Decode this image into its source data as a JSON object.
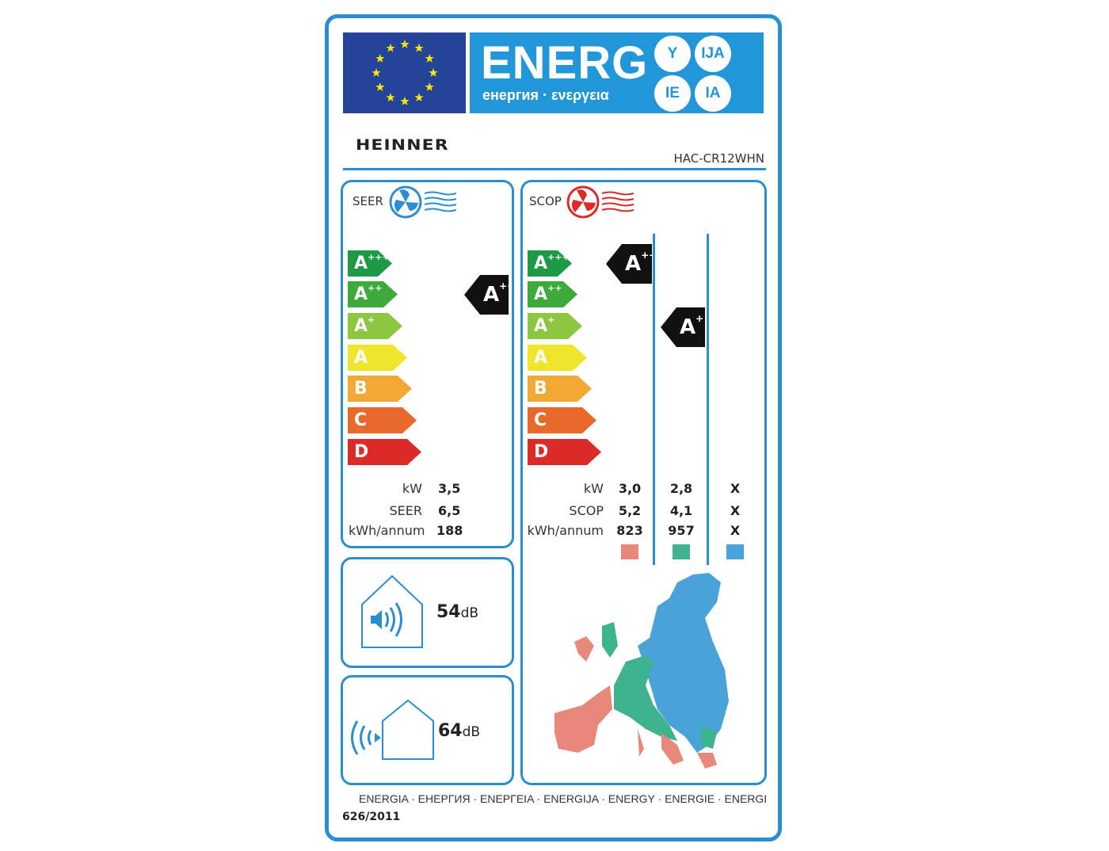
{
  "header": {
    "energy_title": "ENERG",
    "energy_subtitle": "енергия · ενεργεια",
    "language_suffixes": [
      "Y",
      "IJA",
      "IE",
      "IA"
    ],
    "brand": "HEINNER",
    "model": "HAC-CR12WHN"
  },
  "classes": [
    {
      "letter": "A",
      "sup": "+++",
      "color": "#1e9a46"
    },
    {
      "letter": "A",
      "sup": "++",
      "color": "#3faa3c"
    },
    {
      "letter": "A",
      "sup": "+",
      "color": "#8dc63f"
    },
    {
      "letter": "A",
      "sup": "",
      "color": "#efe52a"
    },
    {
      "letter": "B",
      "sup": "",
      "color": "#f2a832"
    },
    {
      "letter": "C",
      "sup": "",
      "color": "#e8692a"
    },
    {
      "letter": "D",
      "sup": "",
      "color": "#dc2a28"
    }
  ],
  "cooling": {
    "title": "SEER",
    "rating": {
      "letter": "A",
      "sup": "++"
    },
    "rows": [
      {
        "label": "kW",
        "value": "3,5"
      },
      {
        "label": "SEER",
        "value": "6,5"
      },
      {
        "label": "kWh/annum",
        "value": "188"
      }
    ]
  },
  "heating": {
    "title": "SCOP",
    "ratings": [
      {
        "letter": "A",
        "sup": "+++"
      },
      {
        "letter": "A",
        "sup": "+"
      }
    ],
    "labels": [
      "kW",
      "SCOP",
      "kWh/annum"
    ],
    "zones": [
      {
        "color": "#e8887a",
        "values": [
          "3,0",
          "5,2",
          "823"
        ]
      },
      {
        "color": "#3db38e",
        "values": [
          "2,8",
          "4,1",
          "957"
        ]
      },
      {
        "color": "#4aa3d8",
        "values": [
          "X",
          "X",
          "X"
        ]
      }
    ]
  },
  "noise": {
    "indoor": {
      "value": "54",
      "unit": "dB"
    },
    "outdoor": {
      "value": "64",
      "unit": "dB"
    }
  },
  "footer": {
    "languages": "ENERGIA · ЕНЕРГИЯ · ΕΝΕΡΓΕΙΑ · ENERGIJA · ENERGY · ENERGIE · ENERGI",
    "regulation": "626/2011"
  },
  "colors": {
    "frame": "#2a8fd0",
    "flag": "#24449a",
    "energy_band": "#2196d8"
  }
}
